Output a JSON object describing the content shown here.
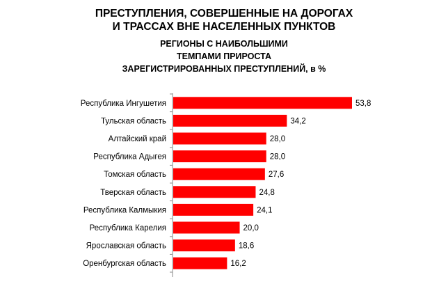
{
  "chart_data": {
    "type": "bar",
    "orientation": "horizontal",
    "title_lines": [
      "ПРЕСТУПЛЕНИЯ, СОВЕРШЕННЫЕ НА ДОРОГАХ",
      "И ТРАССАХ ВНЕ НАСЕЛЕННЫХ ПУНКТОВ"
    ],
    "subtitle_lines": [
      "РЕГИОНЫ С НАИБОЛЬШИМИ",
      "ТЕМПАМИ ПРИРОСТА",
      "ЗАРЕГИСТРИРОВАННЫХ ПРЕСТУПЛЕНИЙ, в %"
    ],
    "categories": [
      "Республика Ингушетия",
      "Тульская область",
      "Алтайский край",
      "Республика Адыгея",
      "Томская область",
      "Тверская область",
      "Республика Калмыкия",
      "Республика Карелия",
      "Ярославская область",
      "Оренбургская область"
    ],
    "values": [
      53.8,
      34.2,
      28.0,
      28.0,
      27.6,
      24.8,
      24.1,
      20.0,
      18.6,
      16.2
    ],
    "labels": [
      "53,8",
      "34,2",
      "28,0",
      "28,0",
      "27,6",
      "24,8",
      "24,1",
      "20,0",
      "18,6",
      "16,2"
    ],
    "xlim": [
      0,
      53.8
    ],
    "grid": false,
    "bar_color": "#ff0000"
  }
}
